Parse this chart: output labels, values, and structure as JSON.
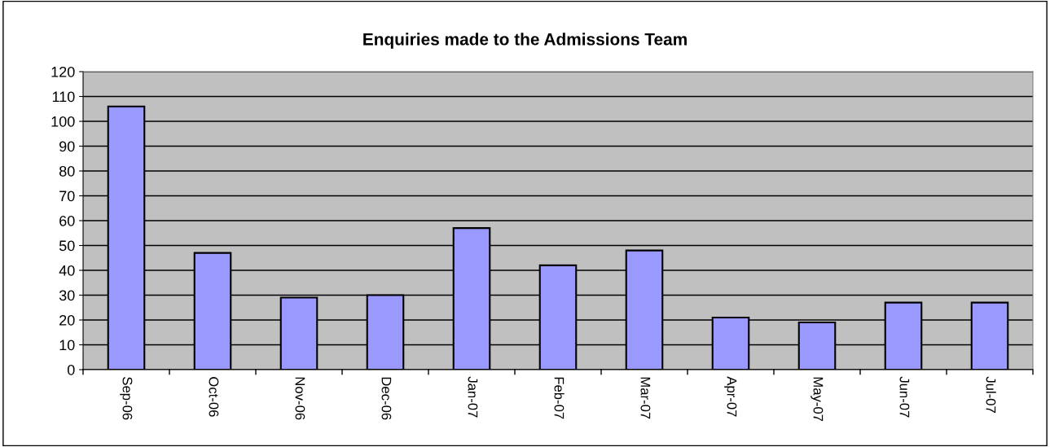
{
  "chart_data": {
    "type": "bar",
    "title": "Enquiries made to the Admissions Team",
    "categories": [
      "Sep-06",
      "Oct-06",
      "Nov-06",
      "Dec-06",
      "Jan-07",
      "Feb-07",
      "Mar-07",
      "Apr-07",
      "May-07",
      "Jun-07",
      "Jul-07"
    ],
    "values": [
      106,
      47,
      29,
      30,
      57,
      42,
      48,
      21,
      19,
      27,
      27
    ],
    "color": "#9999ff",
    "ylim": [
      0,
      120
    ],
    "yticks": [
      0,
      10,
      20,
      30,
      40,
      50,
      60,
      70,
      80,
      90,
      100,
      110,
      120
    ],
    "grid": "y",
    "legend": false
  }
}
